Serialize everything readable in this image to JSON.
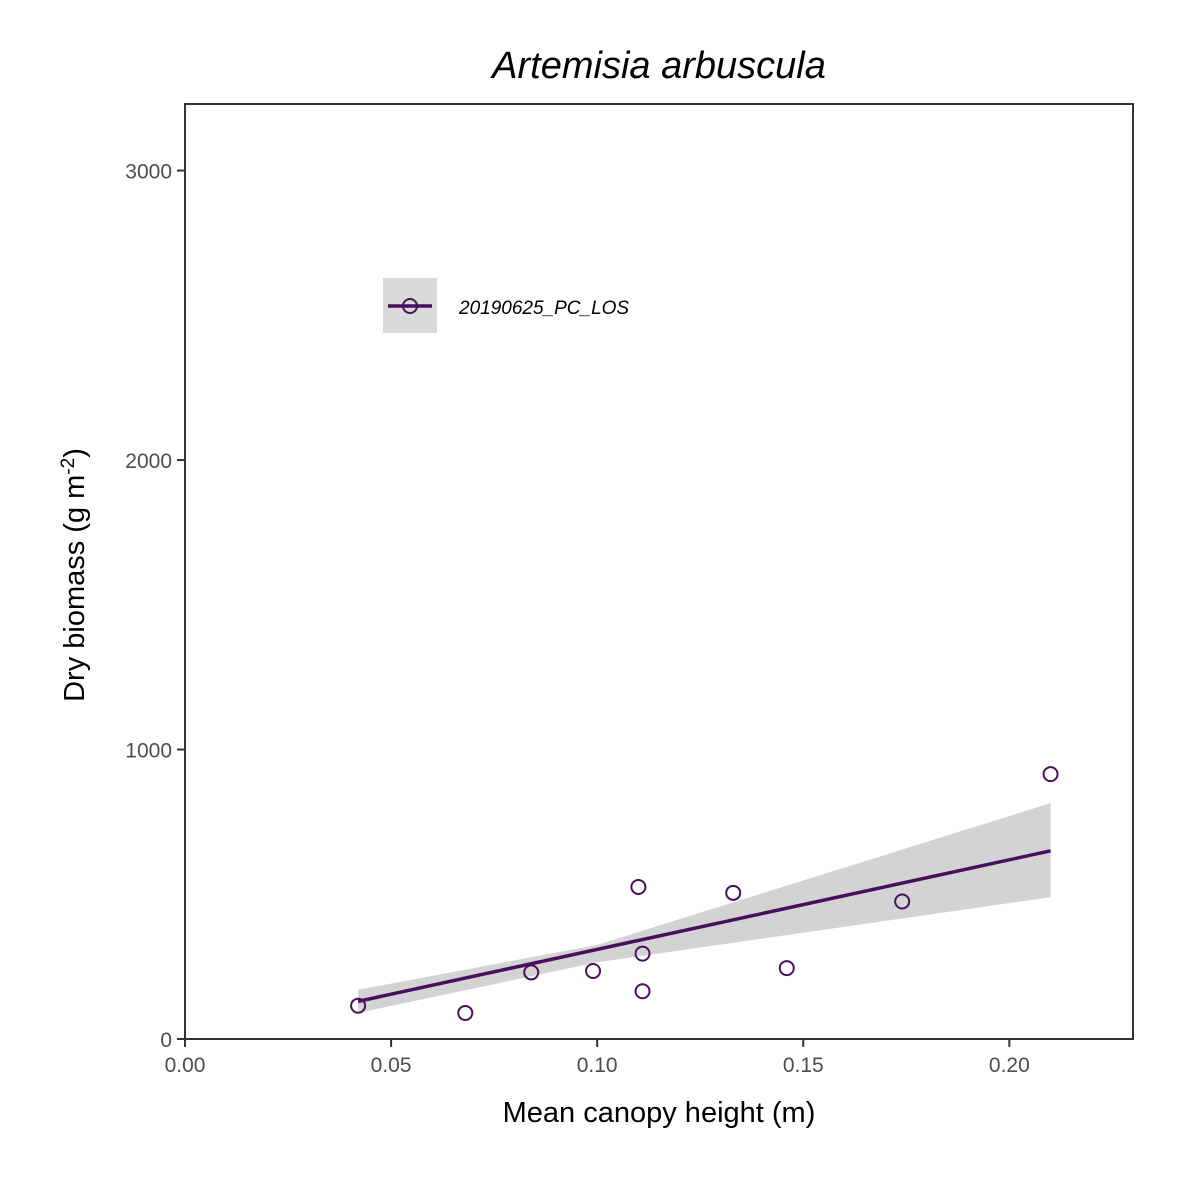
{
  "chart_data": {
    "type": "scatter",
    "title": "Artemisia arbuscula",
    "xlabel": "Mean canopy height (m)",
    "ylabel": "Dry biomass (g m^-2)",
    "ylabel_parts": {
      "main": "Dry biomass (g m",
      "sup": "-2",
      "end": ")"
    },
    "xlim": [
      0.0,
      0.23
    ],
    "ylim": [
      0,
      3230
    ],
    "x_ticks": [
      0.0,
      0.05,
      0.1,
      0.15,
      0.2
    ],
    "x_tick_labels": [
      "0.00",
      "0.05",
      "0.10",
      "0.15",
      "0.20"
    ],
    "y_ticks": [
      0,
      1000,
      2000,
      3000
    ],
    "y_tick_labels": [
      "0",
      "1000",
      "2000",
      "3000"
    ],
    "grid": false,
    "legend_position": "top-left",
    "series": [
      {
        "name": "20190625_PC_LOS",
        "color": "#4a0f5c",
        "points": [
          {
            "x": 0.042,
            "y": 115
          },
          {
            "x": 0.068,
            "y": 90
          },
          {
            "x": 0.084,
            "y": 230
          },
          {
            "x": 0.099,
            "y": 235
          },
          {
            "x": 0.11,
            "y": 525
          },
          {
            "x": 0.111,
            "y": 295
          },
          {
            "x": 0.111,
            "y": 165
          },
          {
            "x": 0.133,
            "y": 505
          },
          {
            "x": 0.146,
            "y": 245
          },
          {
            "x": 0.174,
            "y": 475
          },
          {
            "x": 0.21,
            "y": 915
          }
        ],
        "fit": {
          "x": [
            0.042,
            0.21
          ],
          "y": [
            130,
            650
          ]
        },
        "ci_band": {
          "x": [
            0.042,
            0.1,
            0.21
          ],
          "lower": [
            90,
            265,
            490
          ],
          "upper": [
            170,
            325,
            815
          ]
        },
        "ci_color": "#d3d3d3"
      }
    ]
  }
}
